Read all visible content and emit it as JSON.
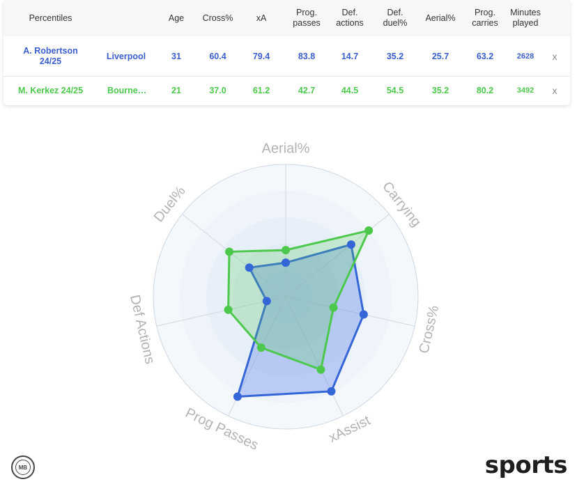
{
  "table": {
    "headers": {
      "label": "Percentiles",
      "age": "Age",
      "cross": "Cross%",
      "xa": "xA",
      "prog_passes": "Prog.\npasses",
      "def_actions": "Def.\nactions",
      "def_duel": "Def.\nduel%",
      "aerial": "Aerial%",
      "prog_carries": "Prog.\ncarries",
      "minutes": "Minutes\nplayed"
    },
    "rows": [
      {
        "player": "A. Robertson\n24/25",
        "team": "Liverpool",
        "age": "31",
        "cross": "60.4",
        "xa": "79.4",
        "prog_passes": "83.8",
        "def_actions": "14.7",
        "def_duel": "35.2",
        "aerial": "25.7",
        "prog_carries": "63.2",
        "minutes": "2628",
        "remove": "x"
      },
      {
        "player": "M. Kerkez 24/25",
        "team": "Bourne…",
        "age": "21",
        "cross": "37.0",
        "xa": "61.2",
        "prog_passes": "42.7",
        "def_actions": "44.5",
        "def_duel": "54.5",
        "aerial": "35.2",
        "prog_carries": "80.2",
        "minutes": "3492",
        "remove": "x"
      }
    ]
  },
  "chart_data": {
    "type": "radar",
    "axes": [
      "Aerial%",
      "Carrying",
      "Cross%",
      "xAssist",
      "Prog Passes",
      "Def Actions",
      "Duel%"
    ],
    "rmax": 100,
    "rings": [
      20,
      40,
      60,
      80,
      100
    ],
    "series": [
      {
        "name": "A. Robertson 24/25",
        "color": "#3566d8",
        "fill": "rgba(90,130,235,0.35)",
        "values": [
          25.7,
          63.2,
          60.4,
          79.4,
          83.8,
          14.7,
          35.2
        ]
      },
      {
        "name": "M. Kerkez 24/25",
        "color": "#4cc94c",
        "fill": "rgba(90,205,90,0.25)",
        "values": [
          35.2,
          80.2,
          37.0,
          61.2,
          42.7,
          44.5,
          54.5
        ]
      }
    ]
  },
  "footer": {
    "logo_text": "MB",
    "brand": "sports"
  }
}
